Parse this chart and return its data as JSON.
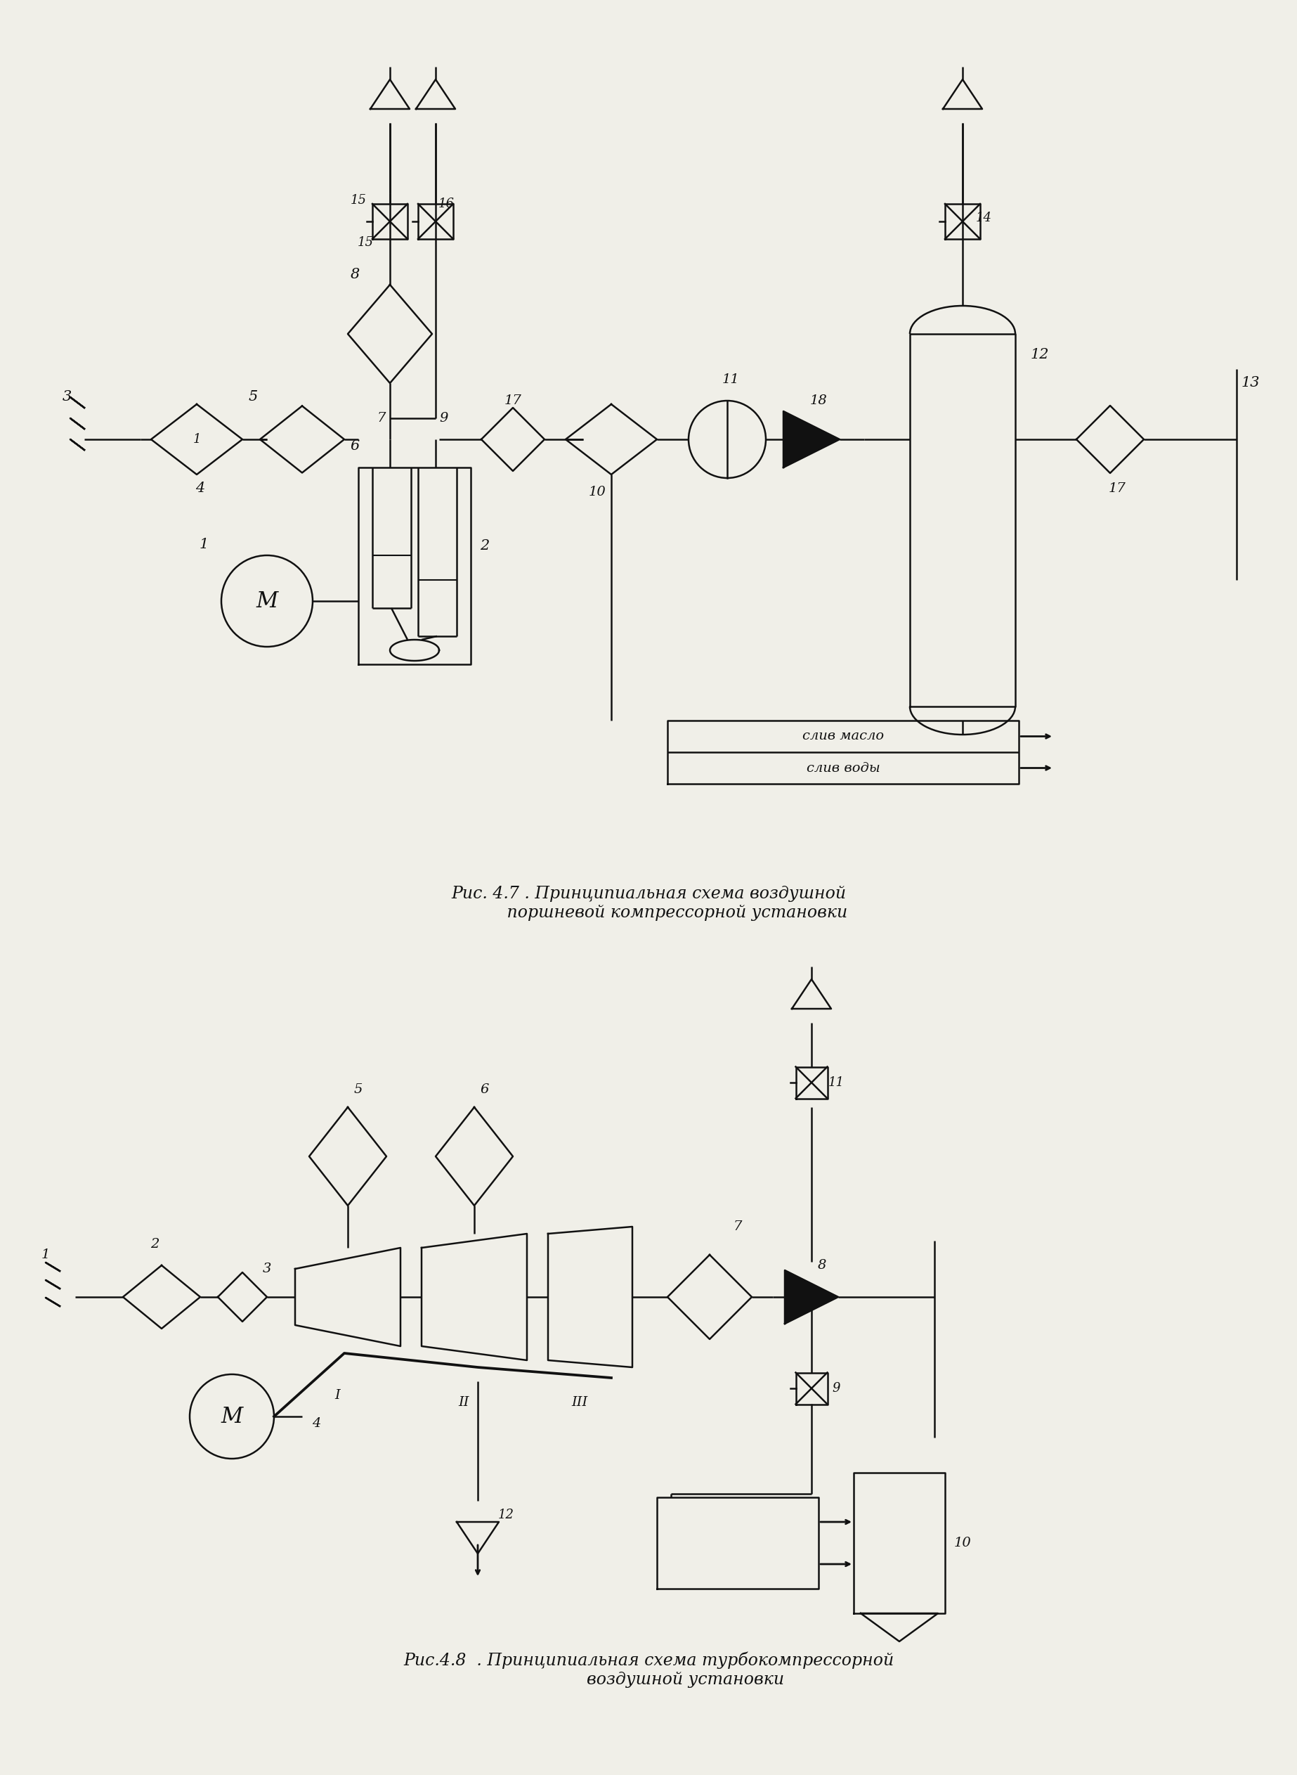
{
  "bg_color": "#f0efe8",
  "lc": "#111111",
  "lw": 1.8,
  "title1": "Рис. 4.7 . Принципиальная схема воздушной\n           поршневой компрессорной установки",
  "title2": "Рис.4.8  . Принципиальная схема турбокомпрессорной\n              воздушной установки",
  "rис1": "Рис. 4.7",
  "рис2": "Рис.4.8"
}
